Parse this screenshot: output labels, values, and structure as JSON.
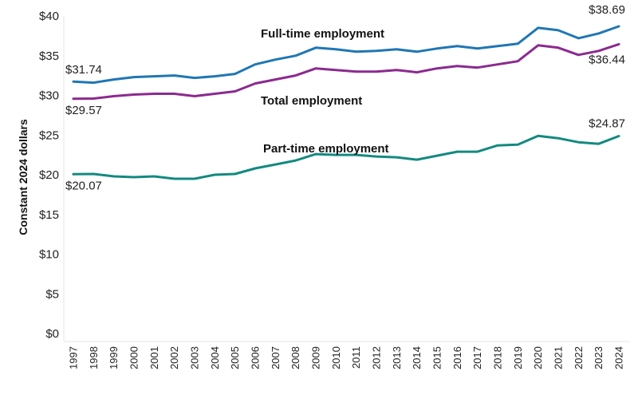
{
  "chart_data": {
    "type": "line",
    "ylabel": "Constant 2024 dollars",
    "ylim": [
      0,
      40
    ],
    "yticks": [
      0,
      5,
      10,
      15,
      20,
      25,
      30,
      35,
      40
    ],
    "ytick_labels": [
      "$0",
      "$5",
      "$10",
      "$15",
      "$20",
      "$25",
      "$30",
      "$35",
      "$40"
    ],
    "grid": false,
    "x": [
      "1997",
      "1998",
      "1999",
      "2000",
      "2001",
      "2002",
      "2003",
      "2004",
      "2005",
      "2006",
      "2007",
      "2008",
      "2009",
      "2010",
      "2011",
      "2012",
      "2013",
      "2014",
      "2015",
      "2016",
      "2017",
      "2018",
      "2019",
      "2020",
      "2021",
      "2022",
      "2023",
      "2024"
    ],
    "series": [
      {
        "name": "Full-time employment",
        "color": "#1f77b4",
        "values": [
          31.74,
          31.6,
          32.0,
          32.3,
          32.4,
          32.5,
          32.2,
          32.4,
          32.7,
          33.9,
          34.5,
          35.0,
          36.0,
          35.8,
          35.5,
          35.6,
          35.8,
          35.5,
          35.9,
          36.2,
          35.9,
          36.2,
          36.5,
          38.5,
          38.2,
          37.2,
          37.8,
          38.69
        ],
        "labels": [
          {
            "index": 0,
            "text": "$31.74"
          },
          {
            "index": 27,
            "text": "$38.69"
          }
        ]
      },
      {
        "name": "Total employment",
        "color": "#8b2a8f",
        "values": [
          29.57,
          29.6,
          29.9,
          30.1,
          30.2,
          30.2,
          29.9,
          30.2,
          30.5,
          31.5,
          32.0,
          32.5,
          33.4,
          33.2,
          33.0,
          33.0,
          33.2,
          32.9,
          33.4,
          33.7,
          33.5,
          33.9,
          34.3,
          36.3,
          36.0,
          35.1,
          35.6,
          36.44
        ],
        "labels": [
          {
            "index": 0,
            "text": "$29.57"
          },
          {
            "index": 27,
            "text": "$36.44"
          }
        ]
      },
      {
        "name": "Part-time employment",
        "color": "#138a80",
        "values": [
          20.07,
          20.1,
          19.8,
          19.7,
          19.8,
          19.5,
          19.5,
          20.0,
          20.1,
          20.8,
          21.3,
          21.8,
          22.6,
          22.5,
          22.5,
          22.3,
          22.2,
          21.9,
          22.4,
          22.9,
          22.9,
          23.7,
          23.8,
          24.9,
          24.6,
          24.1,
          23.9,
          24.87
        ],
        "labels": [
          {
            "index": 0,
            "text": "$20.07"
          },
          {
            "index": 27,
            "text": "$24.87"
          }
        ]
      }
    ]
  }
}
